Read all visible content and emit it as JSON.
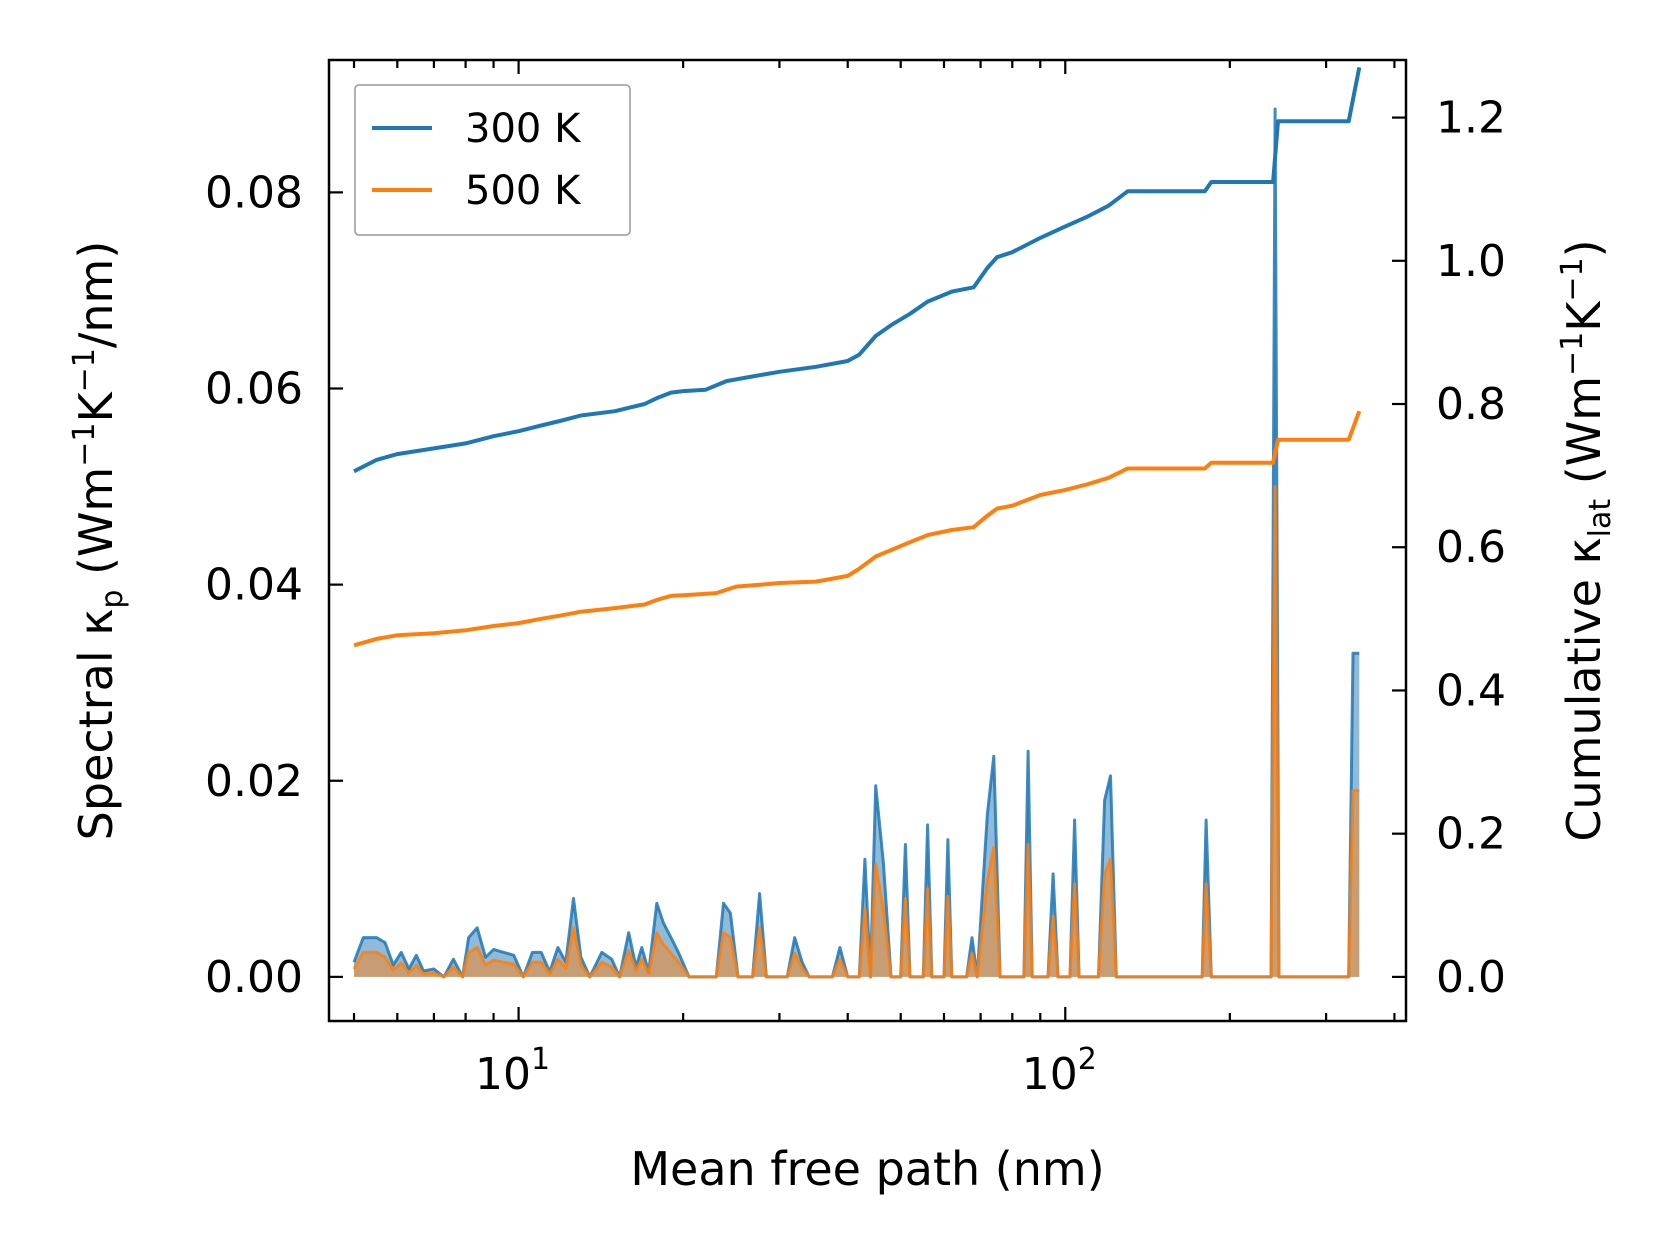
{
  "chart_data": {
    "type": "line",
    "xlabel": "Mean free path (nm)",
    "ylabel_left": {
      "main": "Spectral κ",
      "sub": "p",
      "unit_open": " (Wm",
      "sup1": "−1",
      "k": "K",
      "sup2": "−1",
      "tail": "/nm)"
    },
    "ylabel_right": {
      "main": "Cumulative κ",
      "sub": "lat",
      "unit_open": " (Wm",
      "sup1": "−1",
      "k": "K",
      "sup2": "−1",
      "tail": ")"
    },
    "x_scale": "log",
    "xlim": [
      4.5,
      420
    ],
    "ylim_left": [
      -0.0045,
      0.0935
    ],
    "ylim_right": [
      -0.0616,
      1.2804
    ],
    "x_ticks": [
      {
        "value": 10,
        "base": "10",
        "exp": "1"
      },
      {
        "value": 100,
        "base": "10",
        "exp": "2"
      }
    ],
    "y_left_ticks": [
      {
        "value": 0.0,
        "label": "0.00"
      },
      {
        "value": 0.02,
        "label": "0.02"
      },
      {
        "value": 0.04,
        "label": "0.04"
      },
      {
        "value": 0.06,
        "label": "0.06"
      },
      {
        "value": 0.08,
        "label": "0.08"
      }
    ],
    "y_right_ticks": [
      {
        "value": 0.0,
        "label": "0.0"
      },
      {
        "value": 0.2,
        "label": "0.2"
      },
      {
        "value": 0.4,
        "label": "0.4"
      },
      {
        "value": 0.6,
        "label": "0.6"
      },
      {
        "value": 0.8,
        "label": "0.8"
      },
      {
        "value": 1.0,
        "label": "1.0"
      },
      {
        "value": 1.2,
        "label": "1.2"
      }
    ],
    "legend": {
      "position": "top-left",
      "entries": [
        "300 K",
        "500 K"
      ]
    },
    "series": [
      {
        "name": "300 K",
        "color": "#1f77b4",
        "cumulative_axis": "right",
        "cumulative": [
          [
            5,
            0.706
          ],
          [
            5.5,
            0.722
          ],
          [
            6,
            0.73
          ],
          [
            7,
            0.738
          ],
          [
            8,
            0.745
          ],
          [
            9,
            0.755
          ],
          [
            10,
            0.762
          ],
          [
            11,
            0.77
          ],
          [
            12,
            0.777
          ],
          [
            13,
            0.784
          ],
          [
            15,
            0.79
          ],
          [
            17,
            0.8
          ],
          [
            18,
            0.809
          ],
          [
            19,
            0.816
          ],
          [
            20,
            0.818
          ],
          [
            22,
            0.82
          ],
          [
            24,
            0.832
          ],
          [
            27,
            0.839
          ],
          [
            30,
            0.845
          ],
          [
            35,
            0.852
          ],
          [
            40,
            0.86
          ],
          [
            42,
            0.869
          ],
          [
            45,
            0.895
          ],
          [
            48,
            0.91
          ],
          [
            52,
            0.926
          ],
          [
            56,
            0.943
          ],
          [
            62,
            0.957
          ],
          [
            68,
            0.963
          ],
          [
            72,
            0.99
          ],
          [
            75,
            1.005
          ],
          [
            80,
            1.012
          ],
          [
            90,
            1.032
          ],
          [
            100,
            1.048
          ],
          [
            110,
            1.062
          ],
          [
            120,
            1.077
          ],
          [
            130,
            1.097
          ],
          [
            150,
            1.097
          ],
          [
            180,
            1.097
          ],
          [
            185,
            1.11
          ],
          [
            200,
            1.11
          ],
          [
            240,
            1.11
          ],
          [
            245,
            1.195
          ],
          [
            260,
            1.195
          ],
          [
            330,
            1.195
          ],
          [
            345,
            1.27
          ]
        ],
        "spectral_axis": "left",
        "spectral": [
          [
            5,
            0.0015
          ],
          [
            5.2,
            0.004
          ],
          [
            5.5,
            0.004
          ],
          [
            5.7,
            0.0035
          ],
          [
            5.9,
            0.0012
          ],
          [
            6.1,
            0.0025
          ],
          [
            6.3,
            0.0008
          ],
          [
            6.5,
            0.0022
          ],
          [
            6.7,
            0.0006
          ],
          [
            7.0,
            0.0008
          ],
          [
            7.3,
            0.0
          ],
          [
            7.6,
            0.0018
          ],
          [
            7.9,
            0.0
          ],
          [
            8.1,
            0.004
          ],
          [
            8.4,
            0.005
          ],
          [
            8.7,
            0.002
          ],
          [
            9.0,
            0.0028
          ],
          [
            9.4,
            0.0025
          ],
          [
            9.8,
            0.0022
          ],
          [
            10.2,
            0.0
          ],
          [
            10.6,
            0.0025
          ],
          [
            11.0,
            0.0025
          ],
          [
            11.4,
            0.0005
          ],
          [
            11.8,
            0.003
          ],
          [
            12.2,
            0.0015
          ],
          [
            12.6,
            0.008
          ],
          [
            13.0,
            0.002
          ],
          [
            13.5,
            0.0
          ],
          [
            14.2,
            0.0025
          ],
          [
            14.8,
            0.0018
          ],
          [
            15.3,
            0.0
          ],
          [
            15.9,
            0.0045
          ],
          [
            16.4,
            0.001
          ],
          [
            16.8,
            0.003
          ],
          [
            17.3,
            0.0005
          ],
          [
            17.9,
            0.0075
          ],
          [
            18.4,
            0.0055
          ],
          [
            19.0,
            0.004
          ],
          [
            19.6,
            0.0025
          ],
          [
            20.5,
            0.0
          ],
          [
            23.0,
            0.0
          ],
          [
            23.7,
            0.0075
          ],
          [
            24.4,
            0.0065
          ],
          [
            25.2,
            0.0
          ],
          [
            26.8,
            0.0
          ],
          [
            27.6,
            0.0085
          ],
          [
            28.4,
            0.0
          ],
          [
            31.0,
            0.0
          ],
          [
            32.0,
            0.004
          ],
          [
            33.0,
            0.0015
          ],
          [
            34.0,
            0.0
          ],
          [
            37.5,
            0.0
          ],
          [
            38.7,
            0.003
          ],
          [
            40.0,
            0.0
          ],
          [
            42.0,
            0.0
          ],
          [
            43.0,
            0.012
          ],
          [
            44.0,
            0.0
          ],
          [
            45.0,
            0.0195
          ],
          [
            46.5,
            0.0115
          ],
          [
            48.0,
            0.0
          ],
          [
            50.0,
            0.0
          ],
          [
            51.0,
            0.0135
          ],
          [
            52.0,
            0.0
          ],
          [
            55.0,
            0.0
          ],
          [
            56.0,
            0.0155
          ],
          [
            57.0,
            0.0
          ],
          [
            60.0,
            0.0
          ],
          [
            61.0,
            0.014
          ],
          [
            62.0,
            0.0
          ],
          [
            66.0,
            0.0
          ],
          [
            67.5,
            0.004
          ],
          [
            69.0,
            0.0
          ],
          [
            72.0,
            0.0165
          ],
          [
            74.0,
            0.0225
          ],
          [
            76.0,
            0.0
          ],
          [
            84.0,
            0.0
          ],
          [
            85.5,
            0.023
          ],
          [
            87.0,
            0.0
          ],
          [
            93.0,
            0.0
          ],
          [
            95.0,
            0.0105
          ],
          [
            97.0,
            0.0
          ],
          [
            102.0,
            0.0
          ],
          [
            104.0,
            0.016
          ],
          [
            106.0,
            0.0
          ],
          [
            115.0,
            0.0
          ],
          [
            118.0,
            0.018
          ],
          [
            121.0,
            0.0205
          ],
          [
            124.0,
            0.0
          ],
          [
            178.0,
            0.0
          ],
          [
            181.0,
            0.016
          ],
          [
            185.0,
            0.0
          ],
          [
            238.0,
            0.0
          ],
          [
            242.0,
            0.0885
          ],
          [
            246.0,
            0.0
          ],
          [
            330.0,
            0.0
          ],
          [
            336.0,
            0.033
          ],
          [
            345.0,
            0.033
          ]
        ]
      },
      {
        "name": "500 K",
        "color": "#ff7f0e",
        "cumulative_axis": "right",
        "cumulative": [
          [
            5,
            0.463
          ],
          [
            5.5,
            0.472
          ],
          [
            6,
            0.477
          ],
          [
            7,
            0.48
          ],
          [
            8,
            0.484
          ],
          [
            9,
            0.49
          ],
          [
            10,
            0.494
          ],
          [
            11,
            0.5
          ],
          [
            12,
            0.505
          ],
          [
            13,
            0.51
          ],
          [
            15,
            0.515
          ],
          [
            17,
            0.52
          ],
          [
            18,
            0.527
          ],
          [
            19,
            0.532
          ],
          [
            20,
            0.533
          ],
          [
            23,
            0.536
          ],
          [
            25,
            0.545
          ],
          [
            28,
            0.548
          ],
          [
            30,
            0.55
          ],
          [
            35,
            0.552
          ],
          [
            40,
            0.56
          ],
          [
            42,
            0.57
          ],
          [
            45,
            0.587
          ],
          [
            48,
            0.596
          ],
          [
            52,
            0.607
          ],
          [
            56,
            0.617
          ],
          [
            62,
            0.624
          ],
          [
            68,
            0.628
          ],
          [
            72,
            0.644
          ],
          [
            75,
            0.654
          ],
          [
            80,
            0.658
          ],
          [
            90,
            0.673
          ],
          [
            100,
            0.68
          ],
          [
            110,
            0.688
          ],
          [
            120,
            0.697
          ],
          [
            130,
            0.71
          ],
          [
            150,
            0.71
          ],
          [
            180,
            0.71
          ],
          [
            185,
            0.718
          ],
          [
            200,
            0.718
          ],
          [
            240,
            0.718
          ],
          [
            245,
            0.75
          ],
          [
            260,
            0.75
          ],
          [
            330,
            0.75
          ],
          [
            345,
            0.79
          ]
        ],
        "spectral_axis": "left",
        "spectral": [
          [
            5,
            0.0008
          ],
          [
            5.2,
            0.0025
          ],
          [
            5.5,
            0.0025
          ],
          [
            5.7,
            0.002
          ],
          [
            5.9,
            0.0007
          ],
          [
            6.1,
            0.0014
          ],
          [
            6.3,
            0.0004
          ],
          [
            6.5,
            0.0012
          ],
          [
            6.7,
            0.0003
          ],
          [
            7.0,
            0.0004
          ],
          [
            7.3,
            0.0
          ],
          [
            7.6,
            0.001
          ],
          [
            7.9,
            0.0
          ],
          [
            8.1,
            0.0025
          ],
          [
            8.4,
            0.003
          ],
          [
            8.7,
            0.0012
          ],
          [
            9.0,
            0.0017
          ],
          [
            9.4,
            0.0015
          ],
          [
            9.8,
            0.0013
          ],
          [
            10.2,
            0.0
          ],
          [
            10.6,
            0.0015
          ],
          [
            11.0,
            0.0015
          ],
          [
            11.4,
            0.0003
          ],
          [
            11.8,
            0.0018
          ],
          [
            12.2,
            0.0009
          ],
          [
            12.6,
            0.005
          ],
          [
            13.0,
            0.0012
          ],
          [
            13.5,
            0.0
          ],
          [
            14.2,
            0.0015
          ],
          [
            14.8,
            0.001
          ],
          [
            15.3,
            0.0
          ],
          [
            15.9,
            0.0027
          ],
          [
            16.4,
            0.0006
          ],
          [
            16.8,
            0.0018
          ],
          [
            17.3,
            0.0003
          ],
          [
            17.9,
            0.0045
          ],
          [
            18.4,
            0.0033
          ],
          [
            19.0,
            0.0024
          ],
          [
            19.6,
            0.0015
          ],
          [
            20.5,
            0.0
          ],
          [
            23.0,
            0.0
          ],
          [
            23.7,
            0.0045
          ],
          [
            24.4,
            0.004
          ],
          [
            25.2,
            0.0
          ],
          [
            26.8,
            0.0
          ],
          [
            27.6,
            0.005
          ],
          [
            28.4,
            0.0
          ],
          [
            31.0,
            0.0
          ],
          [
            32.0,
            0.0024
          ],
          [
            33.0,
            0.0009
          ],
          [
            34.0,
            0.0
          ],
          [
            37.5,
            0.0
          ],
          [
            38.7,
            0.0018
          ],
          [
            40.0,
            0.0
          ],
          [
            42.0,
            0.0
          ],
          [
            43.0,
            0.007
          ],
          [
            44.0,
            0.0
          ],
          [
            45.0,
            0.0115
          ],
          [
            46.5,
            0.0068
          ],
          [
            48.0,
            0.0
          ],
          [
            50.0,
            0.0
          ],
          [
            51.0,
            0.008
          ],
          [
            52.0,
            0.0
          ],
          [
            55.0,
            0.0
          ],
          [
            56.0,
            0.009
          ],
          [
            57.0,
            0.0
          ],
          [
            60.0,
            0.0
          ],
          [
            61.0,
            0.0082
          ],
          [
            62.0,
            0.0
          ],
          [
            66.0,
            0.0
          ],
          [
            67.5,
            0.0024
          ],
          [
            69.0,
            0.0
          ],
          [
            72.0,
            0.0098
          ],
          [
            74.0,
            0.0132
          ],
          [
            76.0,
            0.0
          ],
          [
            84.0,
            0.0
          ],
          [
            85.5,
            0.0135
          ],
          [
            87.0,
            0.0
          ],
          [
            93.0,
            0.0
          ],
          [
            95.0,
            0.0062
          ],
          [
            97.0,
            0.0
          ],
          [
            102.0,
            0.0
          ],
          [
            104.0,
            0.0095
          ],
          [
            106.0,
            0.0
          ],
          [
            115.0,
            0.0
          ],
          [
            118.0,
            0.0105
          ],
          [
            121.0,
            0.012
          ],
          [
            124.0,
            0.0
          ],
          [
            178.0,
            0.0
          ],
          [
            181.0,
            0.0095
          ],
          [
            185.0,
            0.0
          ],
          [
            238.0,
            0.0
          ],
          [
            242.0,
            0.05
          ],
          [
            246.0,
            0.0
          ],
          [
            330.0,
            0.0
          ],
          [
            336.0,
            0.019
          ],
          [
            345.0,
            0.019
          ]
        ]
      }
    ]
  }
}
